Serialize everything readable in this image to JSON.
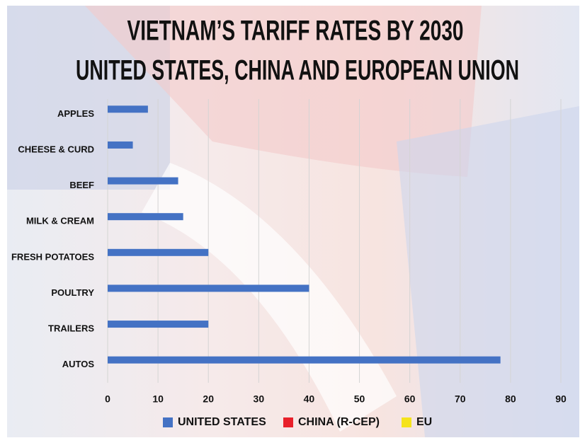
{
  "chart_data": {
    "type": "bar",
    "orientation": "horizontal",
    "title": "VIETNAM’S TARIFF RATES BY 2030",
    "subtitle": "UNITED STATES, CHINA AND EUROPEAN UNION",
    "categories": [
      "APPLES",
      "CHEESE & CURD",
      "BEEF",
      "MILK & CREAM",
      "FRESH POTATOES",
      "POULTRY",
      "TRAILERS",
      "AUTOS"
    ],
    "series": [
      {
        "name": "UNITED STATES",
        "color": "#4472c4",
        "values": [
          8,
          5,
          14,
          15,
          20,
          40,
          20,
          78
        ]
      },
      {
        "name": "CHINA (R-CEP)",
        "color": "#e8202a",
        "values": [
          0,
          0,
          0,
          0,
          0,
          0,
          0,
          0
        ]
      },
      {
        "name": "EU",
        "color": "#f5e31a",
        "values": [
          0,
          0,
          0,
          0,
          0,
          0,
          0,
          0
        ]
      }
    ],
    "xlim": [
      0,
      90
    ],
    "xticks": [
      0,
      10,
      20,
      30,
      40,
      50,
      60,
      70,
      80,
      90
    ],
    "grid": true,
    "legend": "bottom"
  }
}
